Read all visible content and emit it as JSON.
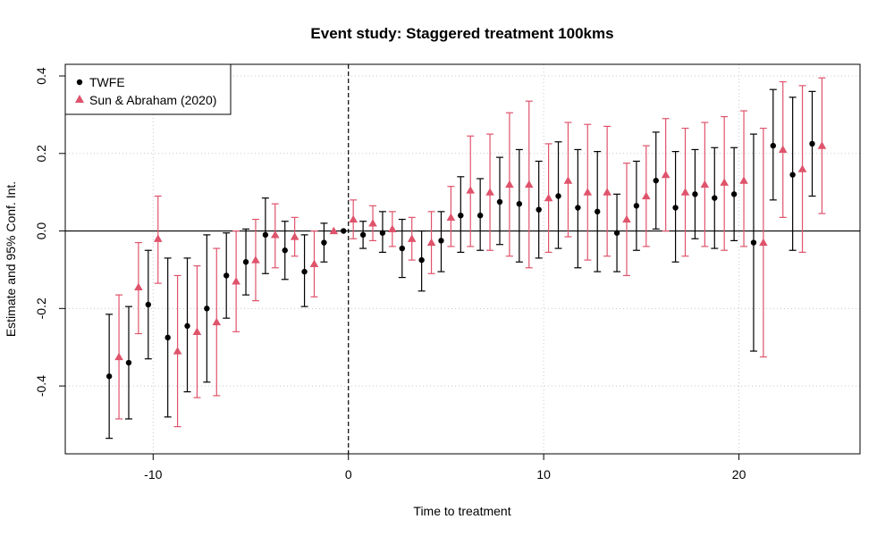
{
  "chart_data": {
    "type": "scatter",
    "title": "Event study: Staggered treatment 100kms",
    "xlabel": "Time to treatment",
    "ylabel": "Estimate and 95% Conf. Int.",
    "xlim": [
      -14.5,
      26.2
    ],
    "ylim": [
      -0.575,
      0.43
    ],
    "xticks": [
      -10,
      0,
      10,
      20
    ],
    "xtick_labels": [
      "-10",
      "0",
      "10",
      "20"
    ],
    "yticks": [
      -0.4,
      -0.2,
      0.0,
      0.2,
      0.4
    ],
    "ytick_labels": [
      "-0.4",
      "-0.2",
      "0.0",
      "0.2",
      "0.4"
    ],
    "grid": true,
    "reference_lines": {
      "horizontal": 0,
      "vertical": 0
    },
    "legend_position": "top-left",
    "colors": {
      "TWFE": "#000000",
      "Sun & Abraham (2020)": "#DF536B"
    },
    "series": [
      {
        "name": "TWFE",
        "marker": "circle",
        "x": [
          -12,
          -11,
          -10,
          -9,
          -8,
          -7,
          -6,
          -5,
          -4,
          -3,
          -2,
          -1,
          0,
          1,
          2,
          3,
          4,
          5,
          6,
          7,
          8,
          9,
          10,
          11,
          12,
          13,
          14,
          15,
          16,
          17,
          18,
          19,
          20,
          21,
          22,
          23,
          24
        ],
        "y": [
          -0.375,
          -0.34,
          -0.19,
          -0.275,
          -0.245,
          -0.2,
          -0.115,
          -0.08,
          -0.01,
          -0.05,
          -0.105,
          -0.03,
          0.0,
          -0.01,
          -0.005,
          -0.045,
          -0.075,
          -0.025,
          0.04,
          0.04,
          0.075,
          0.07,
          0.055,
          0.09,
          0.06,
          0.05,
          -0.005,
          0.065,
          0.13,
          0.06,
          0.095,
          0.085,
          0.095,
          -0.03,
          0.22,
          0.145,
          0.225
        ],
        "lower": [
          -0.535,
          -0.485,
          -0.33,
          -0.48,
          -0.415,
          -0.39,
          -0.225,
          -0.165,
          -0.11,
          -0.125,
          -0.195,
          -0.08,
          0.0,
          -0.045,
          -0.055,
          -0.12,
          -0.155,
          -0.105,
          -0.055,
          -0.05,
          -0.035,
          -0.08,
          -0.07,
          -0.045,
          -0.095,
          -0.105,
          -0.105,
          -0.05,
          0.005,
          -0.08,
          -0.02,
          -0.045,
          -0.025,
          -0.31,
          0.08,
          -0.05,
          0.09
        ],
        "upper": [
          -0.215,
          -0.195,
          -0.05,
          -0.07,
          -0.07,
          -0.01,
          -0.005,
          0.005,
          0.085,
          0.025,
          -0.01,
          0.02,
          0.0,
          0.025,
          0.05,
          0.03,
          0.0,
          0.05,
          0.14,
          0.135,
          0.19,
          0.21,
          0.18,
          0.23,
          0.21,
          0.205,
          0.095,
          0.18,
          0.255,
          0.205,
          0.21,
          0.215,
          0.215,
          0.25,
          0.365,
          0.345,
          0.36
        ]
      },
      {
        "name": "Sun & Abraham (2020)",
        "marker": "triangle",
        "x": [
          -12,
          -11,
          -10,
          -9,
          -8,
          -7,
          -6,
          -5,
          -4,
          -3,
          -2,
          -1,
          0,
          1,
          2,
          3,
          4,
          5,
          6,
          7,
          8,
          9,
          10,
          11,
          12,
          13,
          14,
          15,
          16,
          17,
          18,
          19,
          20,
          21,
          22,
          23,
          24
        ],
        "y": [
          -0.325,
          -0.145,
          -0.02,
          -0.31,
          -0.26,
          -0.235,
          -0.13,
          -0.075,
          -0.01,
          -0.015,
          -0.085,
          0.0,
          0.03,
          0.02,
          0.005,
          -0.02,
          -0.03,
          0.035,
          0.105,
          0.1,
          0.12,
          0.12,
          0.085,
          0.13,
          0.1,
          0.1,
          0.03,
          0.09,
          0.145,
          0.1,
          0.12,
          0.125,
          0.13,
          -0.03,
          0.21,
          0.16,
          0.22
        ],
        "lower": [
          -0.485,
          -0.265,
          -0.135,
          -0.505,
          -0.43,
          -0.425,
          -0.26,
          -0.18,
          -0.095,
          -0.065,
          -0.17,
          0.0,
          -0.02,
          -0.025,
          -0.04,
          -0.075,
          -0.11,
          -0.04,
          -0.04,
          -0.05,
          -0.065,
          -0.095,
          -0.055,
          -0.015,
          -0.075,
          -0.065,
          -0.115,
          -0.04,
          0.0,
          -0.065,
          -0.04,
          -0.05,
          -0.04,
          -0.325,
          0.035,
          -0.055,
          0.045
        ],
        "upper": [
          -0.165,
          -0.03,
          0.09,
          -0.115,
          -0.09,
          -0.045,
          0.0,
          0.03,
          0.07,
          0.035,
          0.0,
          0.0,
          0.08,
          0.065,
          0.05,
          0.035,
          0.05,
          0.115,
          0.245,
          0.25,
          0.305,
          0.335,
          0.225,
          0.28,
          0.275,
          0.27,
          0.175,
          0.22,
          0.29,
          0.265,
          0.28,
          0.295,
          0.31,
          0.265,
          0.385,
          0.375,
          0.395
        ]
      }
    ]
  }
}
